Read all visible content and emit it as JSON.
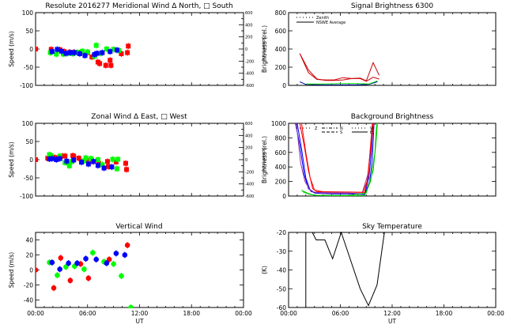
{
  "chart_data": [
    {
      "id": "meridional",
      "type": "scatter",
      "title": "Resolute   2016277     Meridional Wind   Δ North, □ South",
      "xlabel": "",
      "ylabel": "Speed (m/s)",
      "ylabel_right": "Speed (m/s)",
      "xlim": [
        0,
        24
      ],
      "ylim": [
        -100,
        100
      ],
      "yticks": [
        100,
        50,
        0,
        -50,
        -100
      ],
      "ylim_right": [
        -600,
        600
      ],
      "yticks_right": [
        600,
        400,
        200,
        0,
        -200,
        -400,
        -600
      ],
      "legend": [
        "Δ North",
        "□ South"
      ],
      "series": [
        {
          "name": "red",
          "color": "#ff0000",
          "points": [
            [
              0.0,
              0
            ],
            [
              1.8,
              -1
            ],
            [
              2.8,
              -2
            ],
            [
              3.3,
              -7
            ],
            [
              3.9,
              -9
            ],
            [
              4.4,
              -9
            ],
            [
              5.2,
              -9
            ],
            [
              6.0,
              -10
            ],
            [
              6.5,
              -22
            ],
            [
              7.2,
              -36
            ],
            [
              7.4,
              -40
            ],
            [
              8.1,
              -45
            ],
            [
              8.6,
              -31
            ],
            [
              8.7,
              -45
            ],
            [
              9.9,
              -13
            ],
            [
              10.7,
              8
            ],
            [
              10.6,
              -10
            ]
          ]
        },
        {
          "name": "green",
          "color": "#00ff00",
          "points": [
            [
              1.7,
              -10
            ],
            [
              2.4,
              -14
            ],
            [
              3.2,
              -14
            ],
            [
              3.7,
              -12
            ],
            [
              4.3,
              -13
            ],
            [
              4.8,
              -9
            ],
            [
              5.4,
              -6
            ],
            [
              6.0,
              -8
            ],
            [
              6.8,
              -20
            ],
            [
              7.0,
              10
            ],
            [
              7.5,
              -12
            ],
            [
              8.2,
              0
            ],
            [
              9.0,
              -1
            ],
            [
              9.6,
              -4
            ]
          ]
        },
        {
          "name": "blue",
          "color": "#0000ff",
          "points": [
            [
              1.9,
              -7
            ],
            [
              2.5,
              -1
            ],
            [
              3.0,
              -6
            ],
            [
              3.5,
              -12
            ],
            [
              4.0,
              -10
            ],
            [
              4.5,
              -10
            ],
            [
              5.1,
              -13
            ],
            [
              5.7,
              -18
            ],
            [
              6.8,
              -15
            ],
            [
              7.1,
              -12
            ],
            [
              7.7,
              -10
            ],
            [
              8.6,
              -7
            ],
            [
              9.4,
              -3
            ]
          ]
        }
      ]
    },
    {
      "id": "zonal",
      "type": "scatter",
      "title": "Zonal Wind     Δ East, □ West",
      "xlabel": "",
      "ylabel": "Speed (m/s)",
      "ylabel_right": "Speed (m/s)",
      "xlim": [
        0,
        24
      ],
      "ylim": [
        -100,
        100
      ],
      "yticks": [
        100,
        50,
        0,
        -50,
        -100
      ],
      "ylim_right": [
        -600,
        600
      ],
      "yticks_right": [
        600,
        400,
        200,
        0,
        -200,
        -400,
        -600
      ],
      "legend": [
        "Δ East",
        "□ West"
      ],
      "series": [
        {
          "name": "red",
          "color": "#ff0000",
          "points": [
            [
              0.0,
              0
            ],
            [
              1.4,
              4
            ],
            [
              1.6,
              2
            ],
            [
              2.2,
              6
            ],
            [
              2.5,
              3
            ],
            [
              3.1,
              10
            ],
            [
              3.4,
              10
            ],
            [
              4.3,
              11
            ],
            [
              4.4,
              9
            ],
            [
              5.0,
              4
            ],
            [
              5.9,
              -2
            ],
            [
              6.5,
              -5
            ],
            [
              7.3,
              -10
            ],
            [
              8.3,
              -5
            ],
            [
              8.4,
              -19
            ],
            [
              9.3,
              -6
            ],
            [
              10.5,
              -27
            ],
            [
              10.4,
              -10
            ]
          ]
        },
        {
          "name": "green",
          "color": "#00ff00",
          "points": [
            [
              1.6,
              14
            ],
            [
              1.8,
              11
            ],
            [
              2.8,
              10
            ],
            [
              3.4,
              -8
            ],
            [
              3.7,
              -9
            ],
            [
              3.9,
              -17
            ],
            [
              4.2,
              -5
            ],
            [
              5.6,
              -3
            ],
            [
              5.8,
              5
            ],
            [
              6.4,
              3
            ],
            [
              7.2,
              0
            ],
            [
              7.7,
              -14
            ],
            [
              8.9,
              1
            ],
            [
              9.4,
              -25
            ],
            [
              9.5,
              1
            ]
          ]
        },
        {
          "name": "blue",
          "color": "#0000ff",
          "points": [
            [
              1.6,
              2
            ],
            [
              1.9,
              3
            ],
            [
              2.4,
              0
            ],
            [
              2.8,
              3
            ],
            [
              3.6,
              -4
            ],
            [
              4.4,
              -1
            ],
            [
              5.3,
              -7
            ],
            [
              6.1,
              -12
            ],
            [
              6.7,
              -5
            ],
            [
              7.2,
              -16
            ],
            [
              7.9,
              -23
            ],
            [
              8.8,
              -20
            ]
          ]
        }
      ]
    },
    {
      "id": "vertical",
      "type": "scatter",
      "title": "Vertical Wind",
      "xlabel": "UT",
      "ylabel": "Speed (m/s)",
      "xlim": [
        0,
        24
      ],
      "xticks": [
        "00:00",
        "06:00",
        "12:00",
        "18:00",
        "00:00"
      ],
      "ylim": [
        -50,
        50
      ],
      "yticks": [
        40,
        20,
        0,
        -20,
        -40
      ],
      "series": [
        {
          "name": "red",
          "color": "#ff0000",
          "points": [
            [
              0.0,
              0
            ],
            [
              2.1,
              -24
            ],
            [
              2.9,
              16
            ],
            [
              4.0,
              -14
            ],
            [
              5.2,
              8
            ],
            [
              6.1,
              -11
            ],
            [
              8.5,
              14
            ],
            [
              10.6,
              33
            ]
          ]
        },
        {
          "name": "green",
          "color": "#00ff00",
          "points": [
            [
              1.6,
              10
            ],
            [
              2.5,
              -7
            ],
            [
              3.5,
              4
            ],
            [
              4.5,
              5
            ],
            [
              5.6,
              1
            ],
            [
              6.6,
              23
            ],
            [
              7.9,
              11
            ],
            [
              9.0,
              8
            ],
            [
              9.9,
              -8
            ],
            [
              11.0,
              -50
            ]
          ]
        },
        {
          "name": "blue",
          "color": "#0000ff",
          "points": [
            [
              1.9,
              10
            ],
            [
              2.8,
              1
            ],
            [
              3.8,
              9
            ],
            [
              4.8,
              9
            ],
            [
              5.8,
              15
            ],
            [
              7.0,
              14
            ],
            [
              8.2,
              9
            ],
            [
              9.3,
              22
            ],
            [
              10.3,
              20
            ]
          ]
        }
      ]
    },
    {
      "id": "signal",
      "type": "line",
      "title": "Signal Brightness       6300",
      "xlabel": "",
      "ylabel": "Brightness (rel.)",
      "xlim": [
        0,
        24
      ],
      "ylim": [
        0,
        800
      ],
      "yticks": [
        800,
        600,
        400,
        200,
        0
      ],
      "legend": [
        "Zenith",
        "NSWE Average"
      ],
      "legend_position": "top-left",
      "series": [
        {
          "name": "red-1",
          "color": "#cc0000",
          "x": [
            1.3,
            2.3,
            3.3,
            4.3,
            5.3,
            6.3,
            7.3,
            8.3,
            9.0,
            9.8,
            10.5
          ],
          "y": [
            350,
            170,
            70,
            55,
            55,
            60,
            75,
            80,
            50,
            250,
            110
          ]
        },
        {
          "name": "red-2",
          "color": "#cc0000",
          "x": [
            1.3,
            2.3,
            3.3,
            4.3,
            5.3,
            6.3,
            7.3,
            8.3,
            9.0,
            9.8,
            10.5
          ],
          "y": [
            350,
            140,
            65,
            60,
            60,
            85,
            75,
            75,
            45,
            90,
            70
          ]
        },
        {
          "name": "blue",
          "color": "#0000aa",
          "x": [
            1.3,
            2.0,
            4.0,
            6.0,
            8.0,
            9.3,
            10.3
          ],
          "y": [
            40,
            10,
            5,
            5,
            5,
            10,
            40
          ]
        },
        {
          "name": "green",
          "color": "#00dd00",
          "x": [
            2.0,
            4.0,
            6.0,
            8.0,
            9.3,
            10.3
          ],
          "y": [
            15,
            15,
            20,
            20,
            15,
            50
          ]
        }
      ]
    },
    {
      "id": "background",
      "type": "line",
      "title": "Background Brightness",
      "xlabel": "",
      "ylabel": "Brightness (rel.)",
      "xlim": [
        0,
        24
      ],
      "ylim": [
        0,
        1000
      ],
      "yticks": [
        1000,
        800,
        600,
        400,
        200,
        0
      ],
      "legend": [
        "Z",
        "N",
        "S",
        "W",
        "E"
      ],
      "legend_position": "top-left",
      "series": [
        {
          "name": "blue-1",
          "color": "#0000ff",
          "x": [
            0.8,
            1.3,
            1.8,
            2.3,
            3,
            5,
            7,
            8.8,
            9.3,
            9.6,
            9.8
          ],
          "y": [
            1000,
            700,
            300,
            100,
            50,
            40,
            40,
            30,
            250,
            600,
            1000
          ]
        },
        {
          "name": "blue-2",
          "color": "#0000ff",
          "x": [
            1.0,
            1.5,
            2.0,
            2.5,
            3,
            5,
            7,
            8.8,
            9.4,
            9.7,
            9.9
          ],
          "y": [
            1000,
            650,
            250,
            80,
            40,
            30,
            30,
            20,
            200,
            500,
            1000
          ]
        },
        {
          "name": "purple",
          "color": "#993399",
          "x": [
            0.9,
            1.4,
            1.9,
            2.6,
            4,
            6,
            8.5,
            9.2,
            9.6,
            9.9
          ],
          "y": [
            1000,
            450,
            200,
            60,
            40,
            40,
            30,
            300,
            700,
            1000
          ]
        },
        {
          "name": "red-1",
          "color": "#ff0000",
          "x": [
            1.3,
            1.8,
            2.3,
            2.8,
            3.3,
            5,
            7,
            8.8,
            9.2,
            9.5,
            9.7
          ],
          "y": [
            1000,
            700,
            350,
            100,
            60,
            55,
            55,
            50,
            250,
            700,
            1000
          ]
        },
        {
          "name": "red-2",
          "color": "#ff0000",
          "x": [
            1.5,
            2.0,
            2.5,
            3.0,
            4,
            6,
            8.6,
            9.1,
            9.5,
            9.8
          ],
          "y": [
            1000,
            600,
            250,
            80,
            60,
            55,
            50,
            200,
            650,
            1000
          ]
        },
        {
          "name": "green-1",
          "color": "#00cc00",
          "x": [
            1.5,
            2.2,
            3.0,
            5,
            7,
            8.8,
            9.5,
            10.0,
            10.2
          ],
          "y": [
            80,
            40,
            10,
            5,
            5,
            5,
            200,
            600,
            1000
          ]
        },
        {
          "name": "green-2",
          "color": "#00cc00",
          "x": [
            1.6,
            2.4,
            3.3,
            5,
            7,
            9.0,
            9.8,
            10.1,
            10.3
          ],
          "y": [
            60,
            25,
            10,
            10,
            10,
            40,
            350,
            700,
            1000
          ]
        }
      ]
    },
    {
      "id": "skytemp",
      "type": "line",
      "title": "Sky Temperature",
      "xlabel": "UT",
      "ylabel": "(K)",
      "xlim": [
        0,
        24
      ],
      "xticks": [
        "00:00",
        "06:00",
        "12:00",
        "18:00",
        "00:00"
      ],
      "ylim": [
        -60,
        -20
      ],
      "yticks": [
        -20,
        -30,
        -40,
        -50,
        -60
      ],
      "series": [
        {
          "name": "vertical-line",
          "color": "#000000",
          "x": [
            2.0,
            2.0
          ],
          "y": [
            -60,
            -20
          ]
        },
        {
          "name": "sky-temperature",
          "color": "#000000",
          "x": [
            2.75,
            3.2,
            4.2,
            5.1,
            6.1,
            8.3,
            9.25,
            10.25,
            11.1
          ],
          "y": [
            -20,
            -24,
            -24,
            -34,
            -20,
            -50,
            -59,
            -48,
            -20
          ]
        }
      ]
    }
  ]
}
